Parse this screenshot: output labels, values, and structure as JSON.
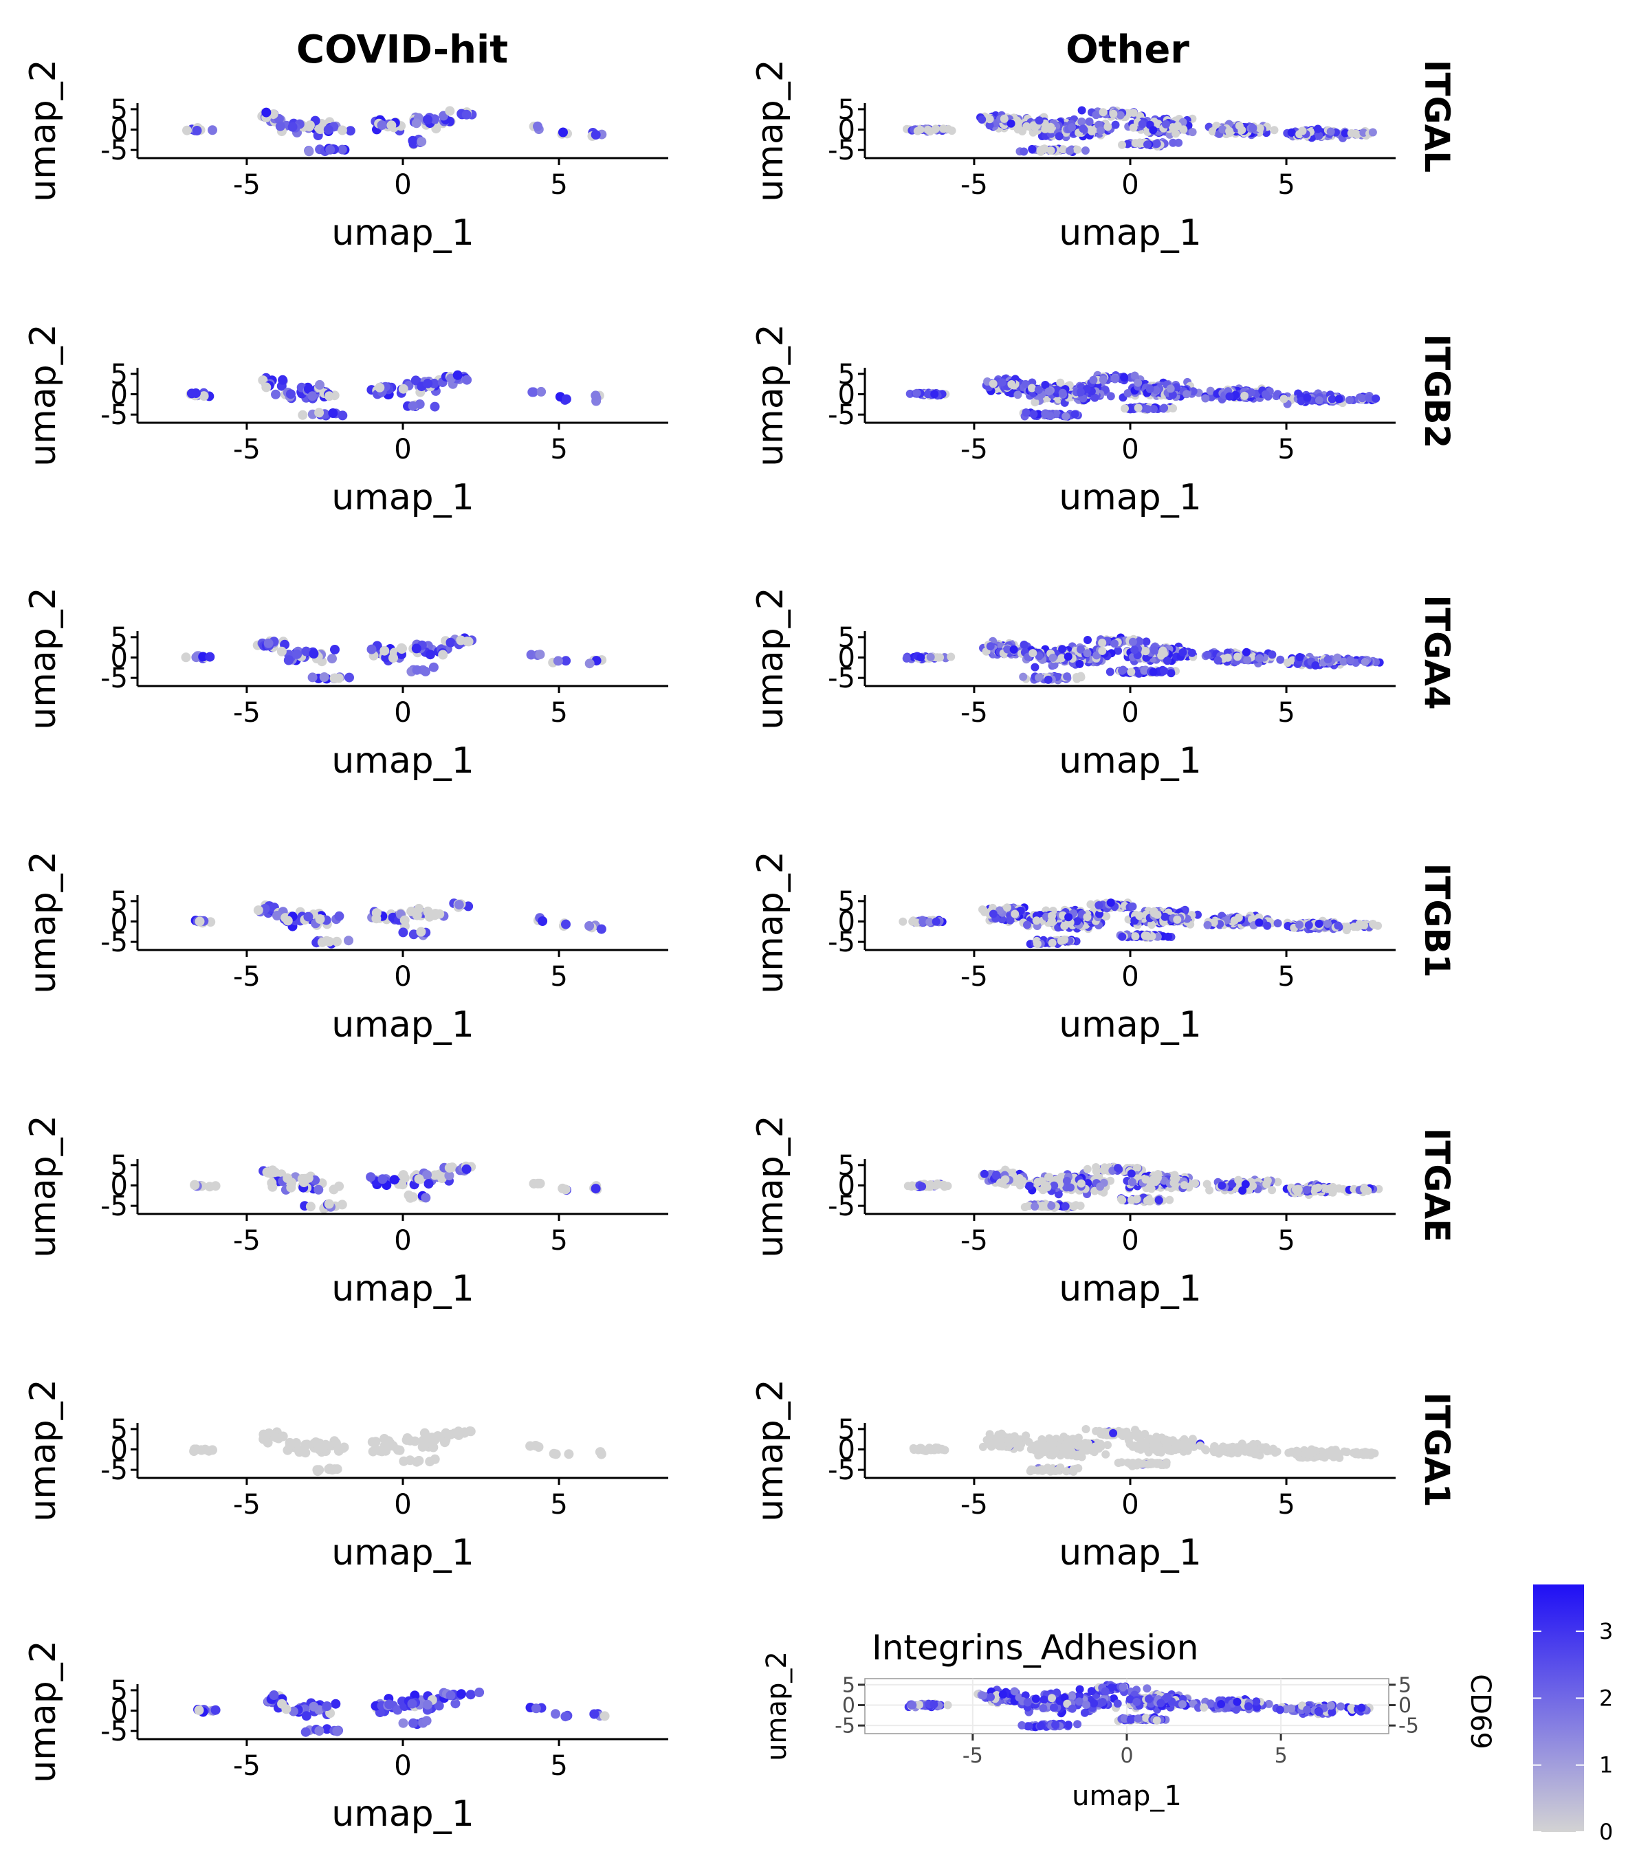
{
  "facet": {
    "columns": [
      "COVID-hit",
      "Other"
    ],
    "rows": [
      "ITGAL",
      "ITGB2",
      "ITGA4",
      "ITGB1",
      "ITGAE",
      "ITGA1"
    ]
  },
  "legend": {
    "title": "CD69",
    "ticks": [
      "0",
      "1",
      "2",
      "3"
    ],
    "tick_values": [
      0,
      1,
      2,
      3
    ],
    "max_value": 3.7,
    "low_color": "#d3d3d3",
    "high_color": "#1f0ff5"
  },
  "styles": {
    "panel_bg": "#ffffff",
    "gridline_color": "#ebebeb",
    "axis_color": "#000000",
    "point_low": "#d3d3d3",
    "point_high": "#1f0ff5"
  },
  "chart_data": [
    {
      "type": "scatter",
      "panel": "COVID-hit / ITGAL",
      "xlabel": "umap_1",
      "ylabel": "umap_2",
      "xlim": [
        -8.5,
        8.5
      ],
      "ylim": [
        -7,
        6.5
      ],
      "xticks": [
        "-5",
        "0",
        "5"
      ],
      "yticks": [
        "5",
        "0",
        "-5"
      ],
      "express_frac": 0.6
    },
    {
      "type": "scatter",
      "panel": "Other / ITGAL",
      "xlabel": "umap_1",
      "ylabel": "umap_2",
      "xlim": [
        -8.5,
        8.5
      ],
      "ylim": [
        -7,
        6.5
      ],
      "xticks": [
        "-5",
        "0",
        "5"
      ],
      "yticks": [
        "5",
        "0",
        "-5"
      ],
      "express_frac": 0.55
    },
    {
      "type": "scatter",
      "panel": "COVID-hit / ITGB2",
      "xlabel": "umap_1",
      "ylabel": "umap_2",
      "xlim": [
        -8.5,
        8.5
      ],
      "ylim": [
        -7,
        6.5
      ],
      "xticks": [
        "-5",
        "0",
        "5"
      ],
      "yticks": [
        "5",
        "0",
        "-5"
      ],
      "express_frac": 0.85
    },
    {
      "type": "scatter",
      "panel": "Other / ITGB2",
      "xlabel": "umap_1",
      "ylabel": "umap_2",
      "xlim": [
        -8.5,
        8.5
      ],
      "ylim": [
        -7,
        6.5
      ],
      "xticks": [
        "-5",
        "0",
        "5"
      ],
      "yticks": [
        "5",
        "0",
        "-5"
      ],
      "express_frac": 0.85
    },
    {
      "type": "scatter",
      "panel": "COVID-hit / ITGA4",
      "xlabel": "umap_1",
      "ylabel": "umap_2",
      "xlim": [
        -8.5,
        8.5
      ],
      "ylim": [
        -7,
        6.5
      ],
      "xticks": [
        "-5",
        "0",
        "5"
      ],
      "yticks": [
        "5",
        "0",
        "-5"
      ],
      "express_frac": 0.7
    },
    {
      "type": "scatter",
      "panel": "Other / ITGA4",
      "xlabel": "umap_1",
      "ylabel": "umap_2",
      "xlim": [
        -8.5,
        8.5
      ],
      "ylim": [
        -7,
        6.5
      ],
      "xticks": [
        "-5",
        "0",
        "5"
      ],
      "yticks": [
        "5",
        "0",
        "-5"
      ],
      "express_frac": 0.75
    },
    {
      "type": "scatter",
      "panel": "COVID-hit / ITGB1",
      "xlabel": "umap_1",
      "ylabel": "umap_2",
      "xlim": [
        -8.5,
        8.5
      ],
      "ylim": [
        -7,
        6.5
      ],
      "xticks": [
        "-5",
        "0",
        "5"
      ],
      "yticks": [
        "5",
        "0",
        "-5"
      ],
      "express_frac": 0.55
    },
    {
      "type": "scatter",
      "panel": "Other / ITGB1",
      "xlabel": "umap_1",
      "ylabel": "umap_2",
      "xlim": [
        -8.5,
        8.5
      ],
      "ylim": [
        -7,
        6.5
      ],
      "xticks": [
        "-5",
        "0",
        "5"
      ],
      "yticks": [
        "5",
        "0",
        "-5"
      ],
      "express_frac": 0.55
    },
    {
      "type": "scatter",
      "panel": "COVID-hit / ITGAE",
      "xlabel": "umap_1",
      "ylabel": "umap_2",
      "xlim": [
        -8.5,
        8.5
      ],
      "ylim": [
        -7,
        6.5
      ],
      "xticks": [
        "-5",
        "0",
        "5"
      ],
      "yticks": [
        "5",
        "0",
        "-5"
      ],
      "express_frac": 0.4
    },
    {
      "type": "scatter",
      "panel": "Other / ITGAE",
      "xlabel": "umap_1",
      "ylabel": "umap_2",
      "xlim": [
        -8.5,
        8.5
      ],
      "ylim": [
        -7,
        6.5
      ],
      "xticks": [
        "-5",
        "0",
        "5"
      ],
      "yticks": [
        "5",
        "0",
        "-5"
      ],
      "express_frac": 0.4
    },
    {
      "type": "scatter",
      "panel": "COVID-hit / ITGA1",
      "xlabel": "umap_1",
      "ylabel": "umap_2",
      "xlim": [
        -8.5,
        8.5
      ],
      "ylim": [
        -7,
        6.5
      ],
      "xticks": [
        "-5",
        "0",
        "5"
      ],
      "yticks": [
        "5",
        "0",
        "-5"
      ],
      "express_frac": 0.0
    },
    {
      "type": "scatter",
      "panel": "Other / ITGA1",
      "xlabel": "umap_1",
      "ylabel": "umap_2",
      "xlim": [
        -8.5,
        8.5
      ],
      "ylim": [
        -7,
        6.5
      ],
      "xticks": [
        "-5",
        "0",
        "5"
      ],
      "yticks": [
        "5",
        "0",
        "-5"
      ],
      "express_frac": 0.02
    },
    {
      "type": "scatter",
      "panel": "COVID-hit / (bottom)",
      "xlabel": "umap_1",
      "ylabel": "umap_2",
      "xlim": [
        -8.5,
        8.5
      ],
      "ylim": [
        -7,
        6.5
      ],
      "xticks": [
        "-5",
        "0",
        "5"
      ],
      "yticks": [
        "5",
        "0",
        "-5"
      ],
      "express_frac": 0.85
    },
    {
      "type": "scatter",
      "panel": "Integrins_Adhesion",
      "title": "Integrins_Adhesion",
      "xlabel": "umap_1",
      "ylabel": "umap_2",
      "xlim": [
        -8.5,
        8.5
      ],
      "ylim": [
        -7,
        6.5
      ],
      "xticks": [
        "-5",
        "0",
        "5"
      ],
      "yticks": [
        "5",
        "0",
        "-5"
      ],
      "grid": true,
      "express_frac": 0.85
    }
  ]
}
